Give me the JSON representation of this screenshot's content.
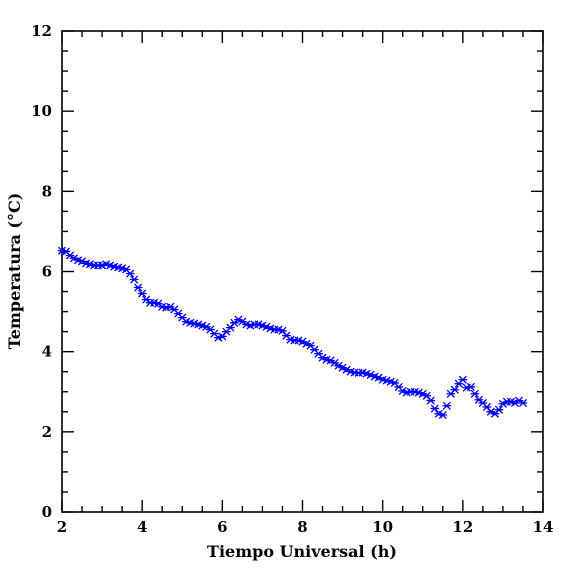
{
  "chart_data": {
    "type": "scatter",
    "xlabel": "Tiempo Universal (h)",
    "ylabel": "Temperatura (°C)",
    "xlim": [
      2,
      14
    ],
    "ylim": [
      0,
      12
    ],
    "x_ticks": [
      2,
      4,
      6,
      8,
      10,
      12,
      14
    ],
    "y_ticks": [
      0,
      2,
      4,
      6,
      8,
      10,
      12
    ],
    "x_minor_step": 0.5,
    "y_minor_step": 0.5,
    "grid": false,
    "marker": "x-star",
    "color": "#0000ff",
    "series": [
      {
        "points": [
          [
            2.0,
            6.52
          ],
          [
            2.1,
            6.5
          ],
          [
            2.2,
            6.4
          ],
          [
            2.3,
            6.33
          ],
          [
            2.4,
            6.28
          ],
          [
            2.5,
            6.25
          ],
          [
            2.6,
            6.2
          ],
          [
            2.7,
            6.18
          ],
          [
            2.8,
            6.15
          ],
          [
            2.9,
            6.15
          ],
          [
            3.0,
            6.15
          ],
          [
            3.1,
            6.18
          ],
          [
            3.2,
            6.15
          ],
          [
            3.3,
            6.12
          ],
          [
            3.4,
            6.1
          ],
          [
            3.5,
            6.08
          ],
          [
            3.6,
            6.05
          ],
          [
            3.7,
            5.95
          ],
          [
            3.8,
            5.8
          ],
          [
            3.9,
            5.6
          ],
          [
            4.0,
            5.45
          ],
          [
            4.1,
            5.3
          ],
          [
            4.2,
            5.22
          ],
          [
            4.3,
            5.22
          ],
          [
            4.4,
            5.2
          ],
          [
            4.5,
            5.12
          ],
          [
            4.6,
            5.1
          ],
          [
            4.7,
            5.12
          ],
          [
            4.8,
            5.05
          ],
          [
            4.9,
            4.95
          ],
          [
            5.0,
            4.85
          ],
          [
            5.1,
            4.75
          ],
          [
            5.2,
            4.72
          ],
          [
            5.3,
            4.7
          ],
          [
            5.4,
            4.68
          ],
          [
            5.5,
            4.65
          ],
          [
            5.6,
            4.62
          ],
          [
            5.7,
            4.55
          ],
          [
            5.8,
            4.45
          ],
          [
            5.9,
            4.35
          ],
          [
            6.0,
            4.38
          ],
          [
            6.1,
            4.5
          ],
          [
            6.2,
            4.6
          ],
          [
            6.3,
            4.72
          ],
          [
            6.4,
            4.8
          ],
          [
            6.5,
            4.75
          ],
          [
            6.6,
            4.68
          ],
          [
            6.7,
            4.65
          ],
          [
            6.8,
            4.68
          ],
          [
            6.9,
            4.68
          ],
          [
            7.0,
            4.65
          ],
          [
            7.1,
            4.62
          ],
          [
            7.2,
            4.58
          ],
          [
            7.3,
            4.55
          ],
          [
            7.4,
            4.55
          ],
          [
            7.5,
            4.52
          ],
          [
            7.6,
            4.4
          ],
          [
            7.7,
            4.3
          ],
          [
            7.8,
            4.28
          ],
          [
            7.9,
            4.28
          ],
          [
            8.0,
            4.25
          ],
          [
            8.1,
            4.2
          ],
          [
            8.2,
            4.15
          ],
          [
            8.3,
            4.05
          ],
          [
            8.4,
            3.95
          ],
          [
            8.5,
            3.85
          ],
          [
            8.6,
            3.8
          ],
          [
            8.7,
            3.78
          ],
          [
            8.8,
            3.72
          ],
          [
            8.9,
            3.65
          ],
          [
            9.0,
            3.6
          ],
          [
            9.1,
            3.55
          ],
          [
            9.2,
            3.5
          ],
          [
            9.3,
            3.48
          ],
          [
            9.4,
            3.47
          ],
          [
            9.5,
            3.48
          ],
          [
            9.6,
            3.45
          ],
          [
            9.7,
            3.42
          ],
          [
            9.8,
            3.38
          ],
          [
            9.9,
            3.35
          ],
          [
            10.0,
            3.3
          ],
          [
            10.1,
            3.28
          ],
          [
            10.2,
            3.25
          ],
          [
            10.3,
            3.22
          ],
          [
            10.4,
            3.12
          ],
          [
            10.5,
            3.02
          ],
          [
            10.6,
            2.98
          ],
          [
            10.7,
            3.0
          ],
          [
            10.8,
            3.0
          ],
          [
            10.9,
            2.98
          ],
          [
            11.0,
            2.95
          ],
          [
            11.1,
            2.9
          ],
          [
            11.2,
            2.78
          ],
          [
            11.3,
            2.58
          ],
          [
            11.4,
            2.45
          ],
          [
            11.5,
            2.42
          ],
          [
            11.6,
            2.65
          ],
          [
            11.7,
            2.95
          ],
          [
            11.8,
            3.05
          ],
          [
            11.9,
            3.2
          ],
          [
            12.0,
            3.3
          ],
          [
            12.1,
            3.1
          ],
          [
            12.2,
            3.12
          ],
          [
            12.3,
            2.95
          ],
          [
            12.4,
            2.8
          ],
          [
            12.5,
            2.72
          ],
          [
            12.6,
            2.62
          ],
          [
            12.7,
            2.5
          ],
          [
            12.8,
            2.45
          ],
          [
            12.9,
            2.55
          ],
          [
            13.0,
            2.7
          ],
          [
            13.1,
            2.75
          ],
          [
            13.2,
            2.75
          ],
          [
            13.3,
            2.72
          ],
          [
            13.4,
            2.78
          ],
          [
            13.5,
            2.72
          ]
        ]
      }
    ]
  }
}
